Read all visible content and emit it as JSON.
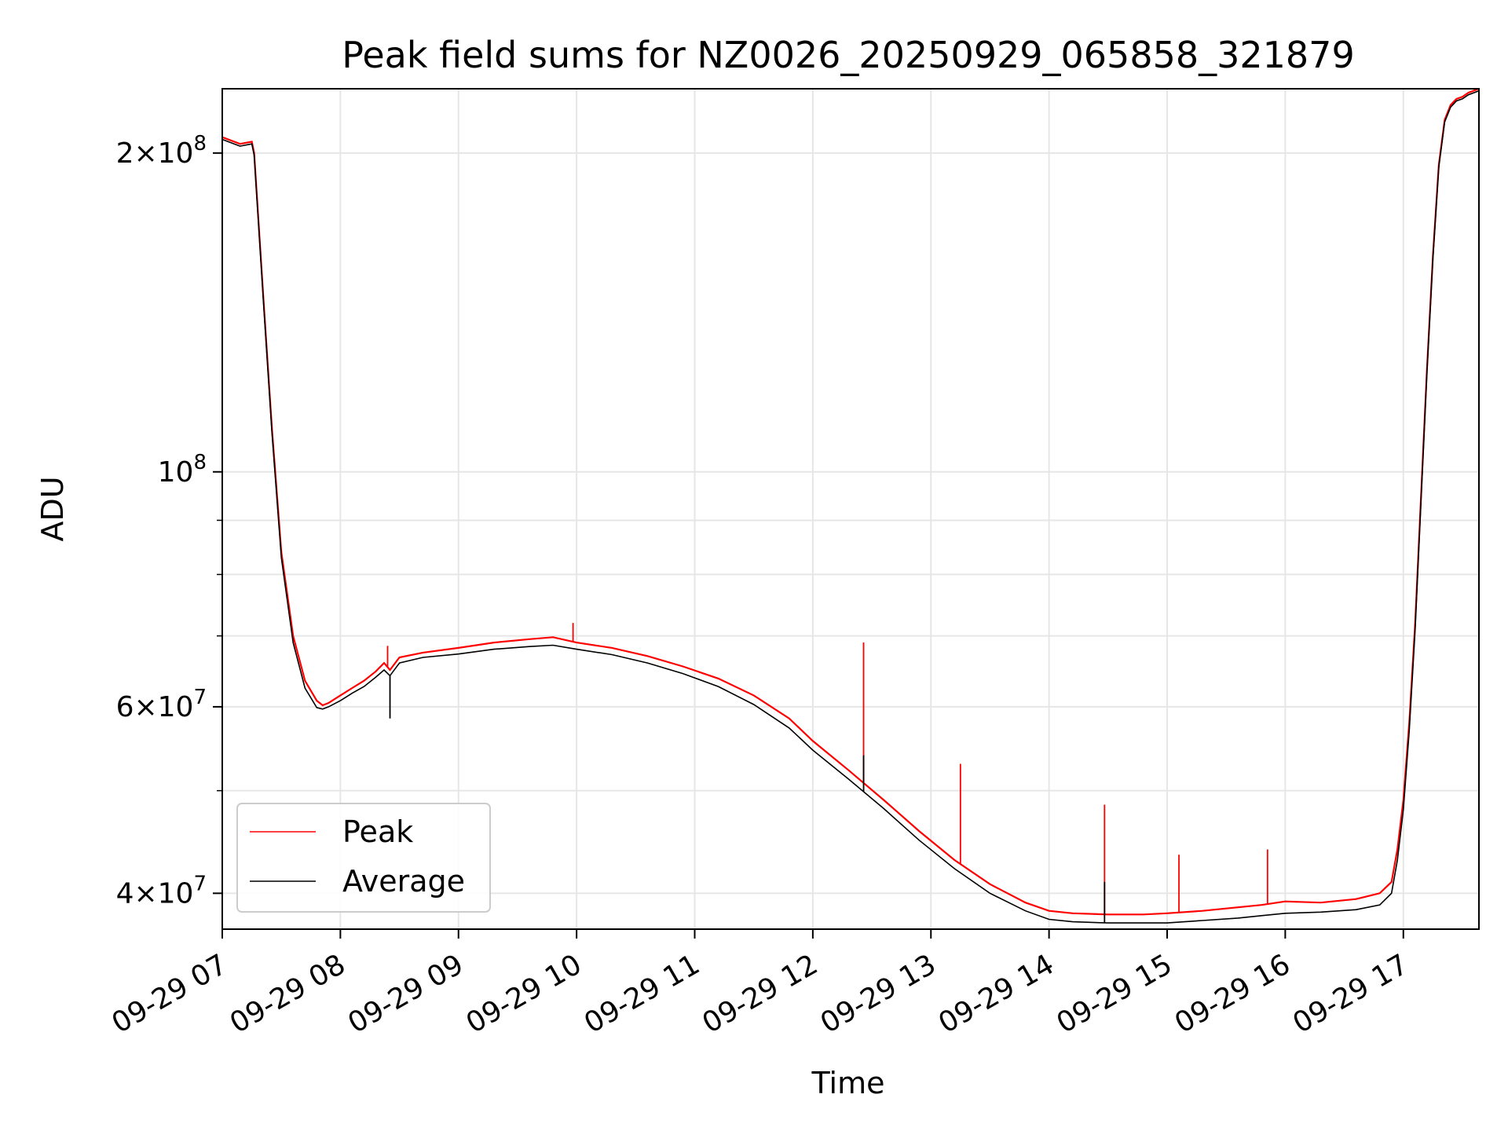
{
  "chart_data": {
    "type": "line",
    "title": "Peak field sums for NZ0026_20250929_065858_321879",
    "xlabel": "Time",
    "ylabel": "ADU",
    "x_unit": "hours of day on 2025-09-29",
    "xlim": [
      7.0,
      17.64
    ],
    "ylim": [
      37000000,
      230000000
    ],
    "yscale": "log",
    "grid": true,
    "legend_position": "lower-left",
    "x_ticks": [
      {
        "value": 7,
        "label": "09-29 07"
      },
      {
        "value": 8,
        "label": "09-29 08"
      },
      {
        "value": 9,
        "label": "09-29 09"
      },
      {
        "value": 10,
        "label": "09-29 10"
      },
      {
        "value": 11,
        "label": "09-29 11"
      },
      {
        "value": 12,
        "label": "09-29 12"
      },
      {
        "value": 13,
        "label": "09-29 13"
      },
      {
        "value": 14,
        "label": "09-29 14"
      },
      {
        "value": 15,
        "label": "09-29 15"
      },
      {
        "value": 16,
        "label": "09-29 16"
      },
      {
        "value": 17,
        "label": "09-29 17"
      }
    ],
    "y_ticks": [
      {
        "value": 40000000,
        "mantissa": "4",
        "exponent": "7"
      },
      {
        "value": 60000000,
        "mantissa": "6",
        "exponent": "7"
      },
      {
        "value": 100000000,
        "mantissa": "",
        "exponent": "8"
      },
      {
        "value": 200000000,
        "mantissa": "2",
        "exponent": "8"
      }
    ],
    "y_minor_ticks": [
      50000000,
      70000000,
      80000000,
      90000000
    ],
    "series": [
      {
        "name": "Peak",
        "color": "#ff0000",
        "x": [
          7.0,
          7.15,
          7.25,
          7.27,
          7.35,
          7.42,
          7.5,
          7.6,
          7.7,
          7.8,
          7.85,
          7.9,
          8.0,
          8.1,
          8.2,
          8.3,
          8.37,
          8.42,
          8.5,
          8.7,
          9.0,
          9.3,
          9.6,
          9.8,
          10.0,
          10.3,
          10.6,
          10.9,
          11.2,
          11.5,
          11.8,
          12.0,
          12.3,
          12.6,
          12.9,
          13.2,
          13.5,
          13.8,
          14.0,
          14.2,
          14.5,
          14.8,
          15.0,
          15.3,
          15.6,
          15.8,
          16.0,
          16.3,
          16.6,
          16.8,
          16.9,
          16.95,
          17.0,
          17.05,
          17.1,
          17.15,
          17.2,
          17.25,
          17.3,
          17.35,
          17.4,
          17.45,
          17.5,
          17.55,
          17.64
        ],
        "y": [
          207000000,
          204000000,
          205000000,
          200000000,
          145000000,
          110000000,
          84000000,
          70000000,
          63500000,
          60800000,
          60200000,
          60500000,
          61500000,
          62500000,
          63500000,
          64800000,
          66000000,
          65000000,
          66800000,
          67500000,
          68200000,
          69000000,
          69500000,
          69800000,
          69000000,
          68200000,
          67000000,
          65500000,
          63800000,
          61500000,
          58500000,
          55700000,
          52300000,
          49000000,
          45800000,
          43000000,
          40800000,
          39200000,
          38500000,
          38300000,
          38200000,
          38200000,
          38300000,
          38500000,
          38800000,
          39000000,
          39300000,
          39200000,
          39500000,
          40000000,
          41000000,
          44000000,
          49000000,
          58000000,
          72000000,
          95000000,
          125000000,
          160000000,
          195000000,
          215000000,
          222000000,
          225000000,
          226000000,
          228000000,
          230000000
        ]
      },
      {
        "name": "Average",
        "color": "#000000",
        "x": [
          7.0,
          7.15,
          7.25,
          7.27,
          7.35,
          7.42,
          7.5,
          7.6,
          7.7,
          7.8,
          7.85,
          7.9,
          8.0,
          8.1,
          8.2,
          8.3,
          8.37,
          8.42,
          8.5,
          8.7,
          9.0,
          9.3,
          9.6,
          9.8,
          10.0,
          10.3,
          10.6,
          10.9,
          11.2,
          11.5,
          11.8,
          12.0,
          12.3,
          12.6,
          12.9,
          13.2,
          13.5,
          13.8,
          14.0,
          14.2,
          14.5,
          14.8,
          15.0,
          15.3,
          15.6,
          15.8,
          16.0,
          16.3,
          16.6,
          16.8,
          16.9,
          16.95,
          17.0,
          17.05,
          17.1,
          17.15,
          17.2,
          17.25,
          17.3,
          17.35,
          17.4,
          17.45,
          17.5,
          17.55,
          17.64
        ],
        "y": [
          206000000,
          203000000,
          204000000,
          199000000,
          144000000,
          109000000,
          83000000,
          69000000,
          62500000,
          59900000,
          59700000,
          60000000,
          60800000,
          61800000,
          62700000,
          64000000,
          65000000,
          64200000,
          66000000,
          66800000,
          67300000,
          68000000,
          68400000,
          68600000,
          68000000,
          67200000,
          66000000,
          64500000,
          62700000,
          60300000,
          57300000,
          54600000,
          51300000,
          48100000,
          44900000,
          42200000,
          40000000,
          38500000,
          37800000,
          37600000,
          37500000,
          37500000,
          37500000,
          37700000,
          37900000,
          38100000,
          38300000,
          38400000,
          38600000,
          39000000,
          40000000,
          43000000,
          48000000,
          57000000,
          71000000,
          94000000,
          124000000,
          159000000,
          194000000,
          214000000,
          221000000,
          224000000,
          225000000,
          227000000,
          229000000
        ]
      }
    ],
    "annotations": [
      {
        "series": "Peak",
        "x": 12.43,
        "y": 69000000
      },
      {
        "series": "Peak",
        "x": 13.25,
        "y": 53000000
      },
      {
        "series": "Peak",
        "x": 14.47,
        "y": 48500000
      },
      {
        "series": "Peak",
        "x": 9.97,
        "y": 72000000
      },
      {
        "series": "Peak",
        "x": 15.1,
        "y": 43500000
      },
      {
        "series": "Peak",
        "x": 15.85,
        "y": 44000000
      },
      {
        "series": "Peak",
        "x": 8.4,
        "y": 68500000
      },
      {
        "series": "Average",
        "x": 8.42,
        "y": 58500000
      },
      {
        "series": "Average",
        "x": 12.43,
        "y": 54000000
      },
      {
        "series": "Average",
        "x": 14.47,
        "y": 41000000
      }
    ]
  }
}
